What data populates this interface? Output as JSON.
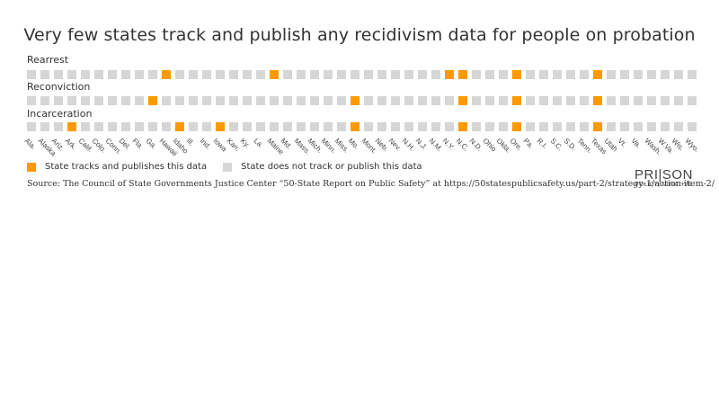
{
  "chart_data": {
    "type": "heatmap",
    "title": "Very few states track and publish any recidivism data for people on probation",
    "categories": [
      "Ala.",
      "Alaska",
      "Ariz.",
      "Ark.",
      "Calif.",
      "Colo.",
      "Conn.",
      "Del.",
      "Fla.",
      "Ga.",
      "Hawaii",
      "Idaho",
      "Ill.",
      "Ind.",
      "Iowa",
      "Kan.",
      "Ky.",
      "La.",
      "Maine",
      "Md.",
      "Mass.",
      "Mich.",
      "Minn.",
      "Miss.",
      "Mo.",
      "Mont.",
      "Neb.",
      "Nev.",
      "N.H.",
      "N.J.",
      "N.M.",
      "N.Y.",
      "N.C.",
      "N.D.",
      "Ohio",
      "Okla.",
      "Ore.",
      "Pa.",
      "R.I.",
      "S.C.",
      "S.D.",
      "Tenn.",
      "Texas",
      "Utah",
      "Vt.",
      "Va.",
      "Wash.",
      "W.Va.",
      "Wis.",
      "Wyo."
    ],
    "series": [
      {
        "name": "Rearrest",
        "tracked": [
          "Hawaii",
          "Maine",
          "N.Y.",
          "N.C.",
          "Ore.",
          "Texas"
        ]
      },
      {
        "name": "Reconviction",
        "tracked": [
          "Ga.",
          "Mo.",
          "N.C.",
          "Ore.",
          "Texas"
        ]
      },
      {
        "name": "Incarceration",
        "tracked": [
          "Ark.",
          "Idaho",
          "Iowa",
          "Mo.",
          "N.C.",
          "Ore.",
          "Texas"
        ]
      }
    ],
    "legend": [
      {
        "label": "State tracks and publishes this data",
        "color": "#ff9900"
      },
      {
        "label": "State does not track or publish this data",
        "color": "#d6d6d6"
      }
    ]
  },
  "title": "Very few states track and publish any recidivism data for people on probation",
  "rows": [
    {
      "label": "Rearrest"
    },
    {
      "label": "Reconviction"
    },
    {
      "label": "Incarceration"
    }
  ],
  "legend": {
    "on": "State tracks and publishes this data",
    "off": "State does not track or publish this data"
  },
  "source": "Source: The Council of State Governments Justice Center “50-State Report on Public Safety” at https://50statespublicsafety.us/part-2/strategy-1/action-item-2/",
  "logo": {
    "top": "PRI|SON",
    "bottom": "POLICY|INITIATIVE"
  },
  "colors": {
    "on": "#ff9900",
    "off": "#d6d6d6"
  }
}
